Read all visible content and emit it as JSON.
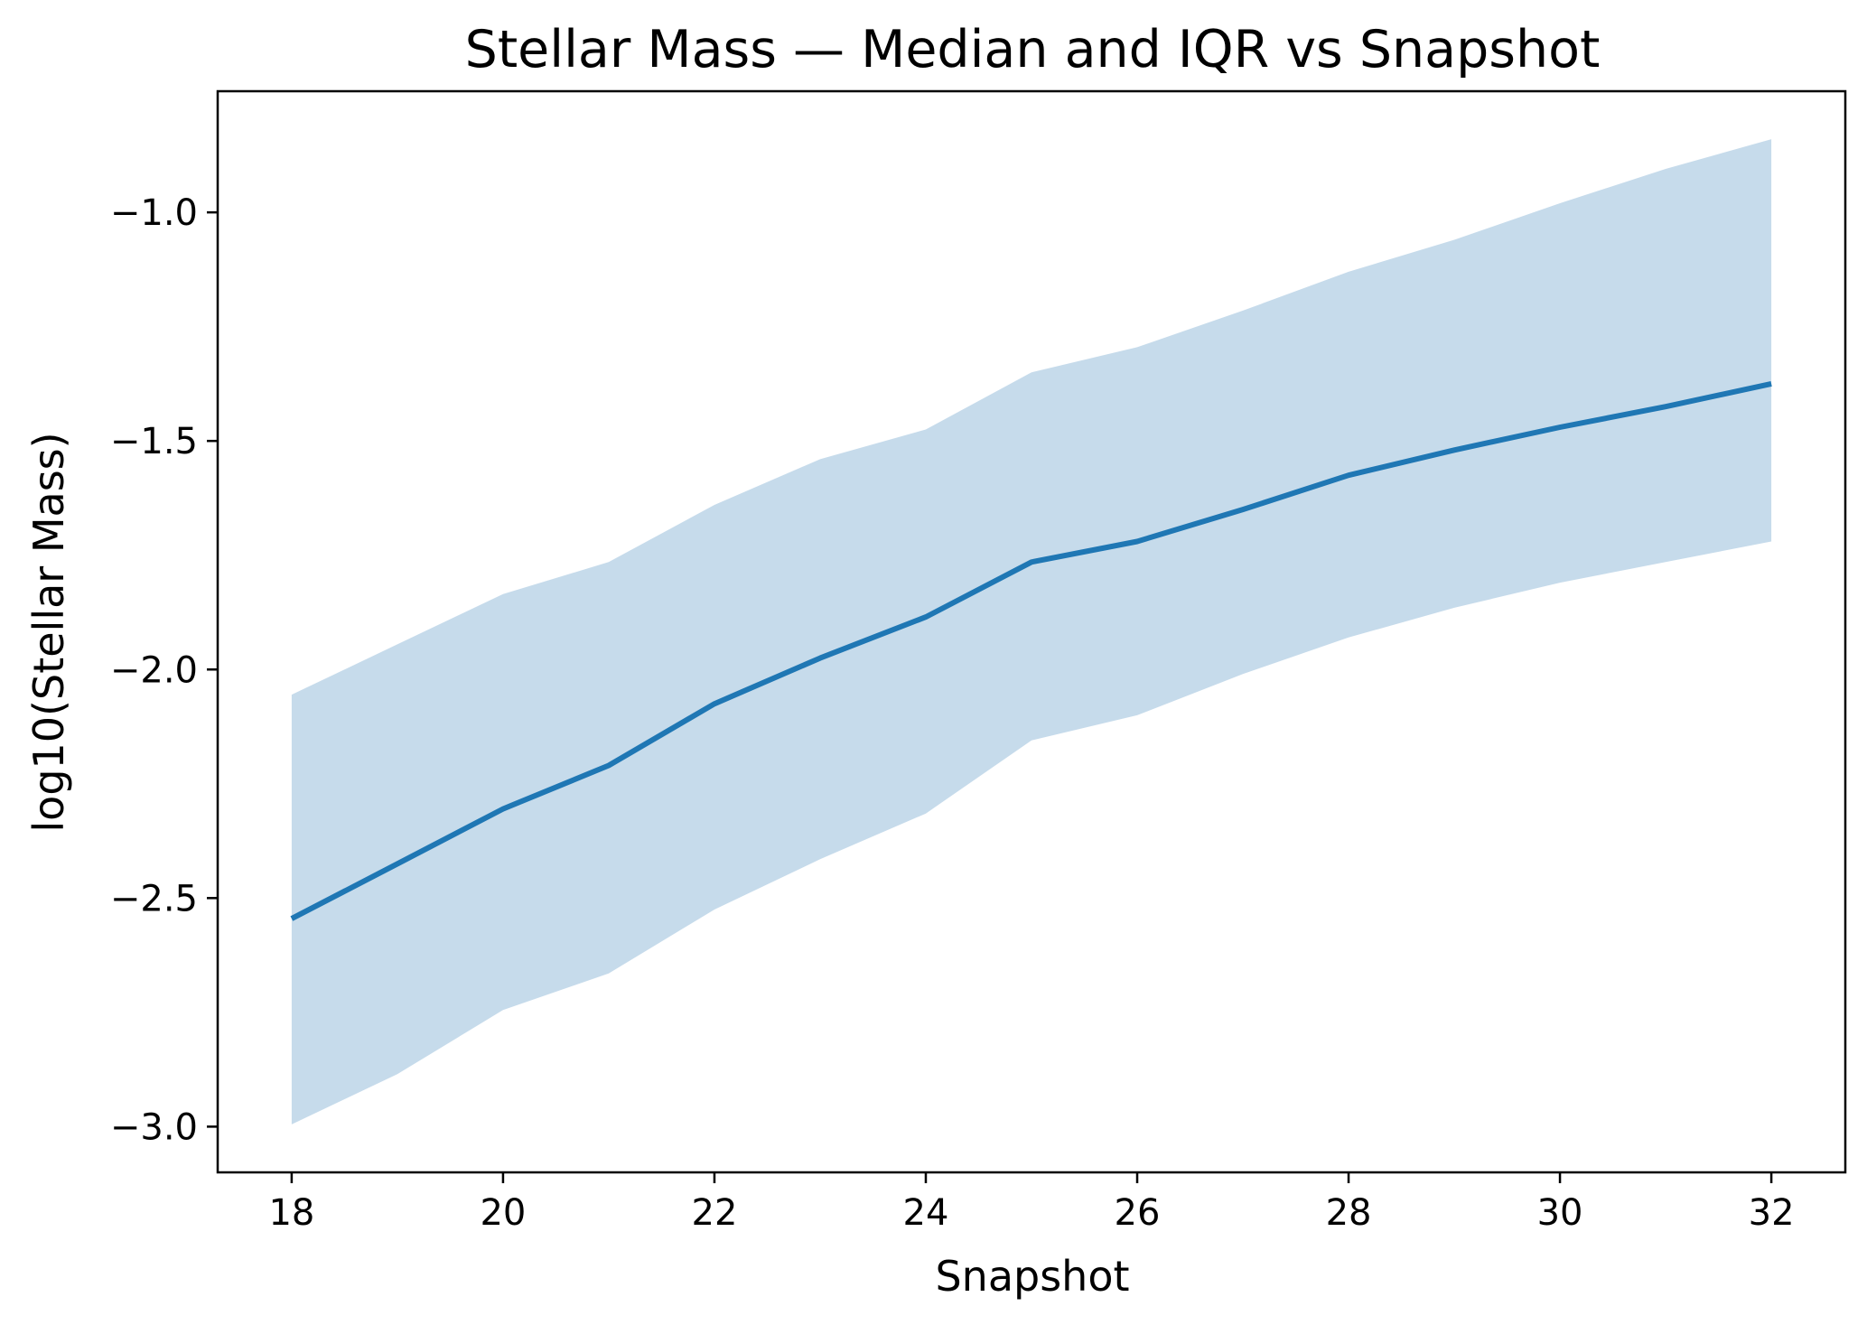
{
  "chart_data": {
    "type": "line",
    "title": "Stellar Mass — Median and IQR vs Snapshot",
    "xlabel": "Snapshot",
    "ylabel": "log10(Stellar Mass)",
    "xlim": [
      17.3,
      32.7
    ],
    "ylim": [
      -3.1,
      -0.735
    ],
    "x_ticks": [
      18,
      20,
      22,
      24,
      26,
      28,
      30,
      32
    ],
    "x_tick_labels": [
      "18",
      "20",
      "22",
      "24",
      "26",
      "28",
      "30",
      "32"
    ],
    "y_ticks": [
      -3.0,
      -2.5,
      -2.0,
      -1.5,
      -1.0
    ],
    "y_tick_labels": [
      "−3.0",
      "−2.5",
      "−2.0",
      "−1.5",
      "−1.0"
    ],
    "grid": false,
    "x": [
      18,
      19,
      20,
      21,
      22,
      23,
      24,
      25,
      26,
      27,
      28,
      29,
      30,
      31,
      32
    ],
    "series": [
      {
        "name": "median",
        "color": "#1f77b4",
        "values": [
          -2.545,
          -2.425,
          -2.305,
          -2.21,
          -2.075,
          -1.975,
          -1.885,
          -1.765,
          -1.72,
          -1.65,
          -1.575,
          -1.52,
          -1.47,
          -1.425,
          -1.375
        ]
      },
      {
        "name": "IQR",
        "color": "#c6dbeb",
        "lower": [
          -2.995,
          -2.885,
          -2.745,
          -2.665,
          -2.525,
          -2.415,
          -2.315,
          -2.155,
          -2.1,
          -2.01,
          -1.93,
          -1.865,
          -1.81,
          -1.765,
          -1.72
        ],
        "upper": [
          -2.055,
          -1.945,
          -1.835,
          -1.765,
          -1.64,
          -1.54,
          -1.475,
          -1.35,
          -1.295,
          -1.215,
          -1.13,
          -1.06,
          -0.98,
          -0.905,
          -0.84
        ]
      }
    ]
  }
}
